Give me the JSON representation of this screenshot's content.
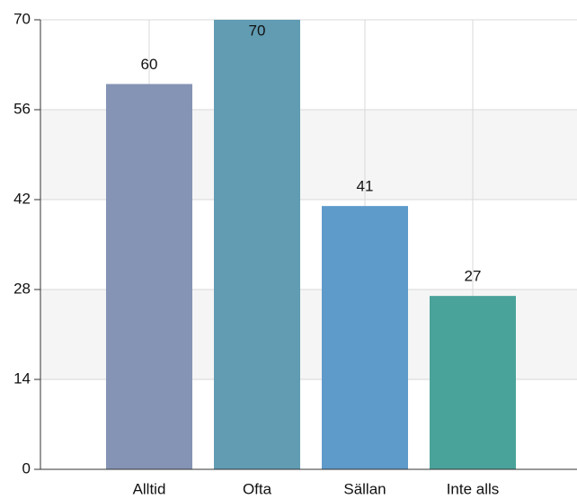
{
  "chart_data": {
    "type": "bar",
    "categories": [
      "Alltid",
      "Ofta",
      "Sällan",
      "Inte alls"
    ],
    "values": [
      60,
      70,
      41,
      27
    ],
    "colors": [
      "#8594b5",
      "#619cb3",
      "#5e9aca",
      "#4aa39a"
    ],
    "ylim": [
      0,
      70
    ],
    "yticks": [
      0,
      14,
      28,
      42,
      56,
      70
    ],
    "grid": true
  }
}
